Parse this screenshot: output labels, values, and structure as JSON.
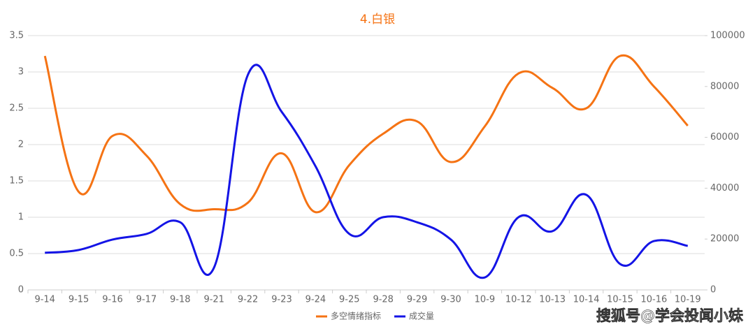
{
  "chart_data": {
    "type": "line",
    "title": "4.白银",
    "watermark": "搜狐号@学会投闻小妹",
    "categories": [
      "9-14",
      "9-15",
      "9-16",
      "9-17",
      "9-18",
      "9-21",
      "9-22",
      "9-23",
      "9-24",
      "9-25",
      "9-28",
      "9-29",
      "9-30",
      "10-9",
      "10-12",
      "10-13",
      "10-14",
      "10-15",
      "10-16",
      "10-19"
    ],
    "series": [
      {
        "name": "多空情绪指标",
        "color": "#f57314",
        "values": [
          3.22,
          1.35,
          2.12,
          1.85,
          1.18,
          1.11,
          1.2,
          1.88,
          1.07,
          1.72,
          2.15,
          2.32,
          1.76,
          2.25,
          2.98,
          2.78,
          2.5,
          3.22,
          2.8,
          2.26
        ]
      },
      {
        "name": "成交量",
        "color": "#1414e6",
        "axis": "y2",
        "values": [
          14600,
          15700,
          19800,
          22000,
          26600,
          8800,
          84600,
          70000,
          48600,
          22000,
          28600,
          26600,
          19800,
          4900,
          28600,
          23100,
          37400,
          10200,
          19200,
          17300
        ]
      }
    ],
    "ylim": [
      0,
      3.5
    ],
    "yticks": [
      0,
      0.5,
      1,
      1.5,
      2,
      2.5,
      3,
      3.5
    ],
    "y2lim": [
      0,
      100000
    ],
    "y2ticks": [
      0,
      20000,
      40000,
      60000,
      80000,
      100000
    ],
    "grid": true,
    "legend": "bottom"
  }
}
